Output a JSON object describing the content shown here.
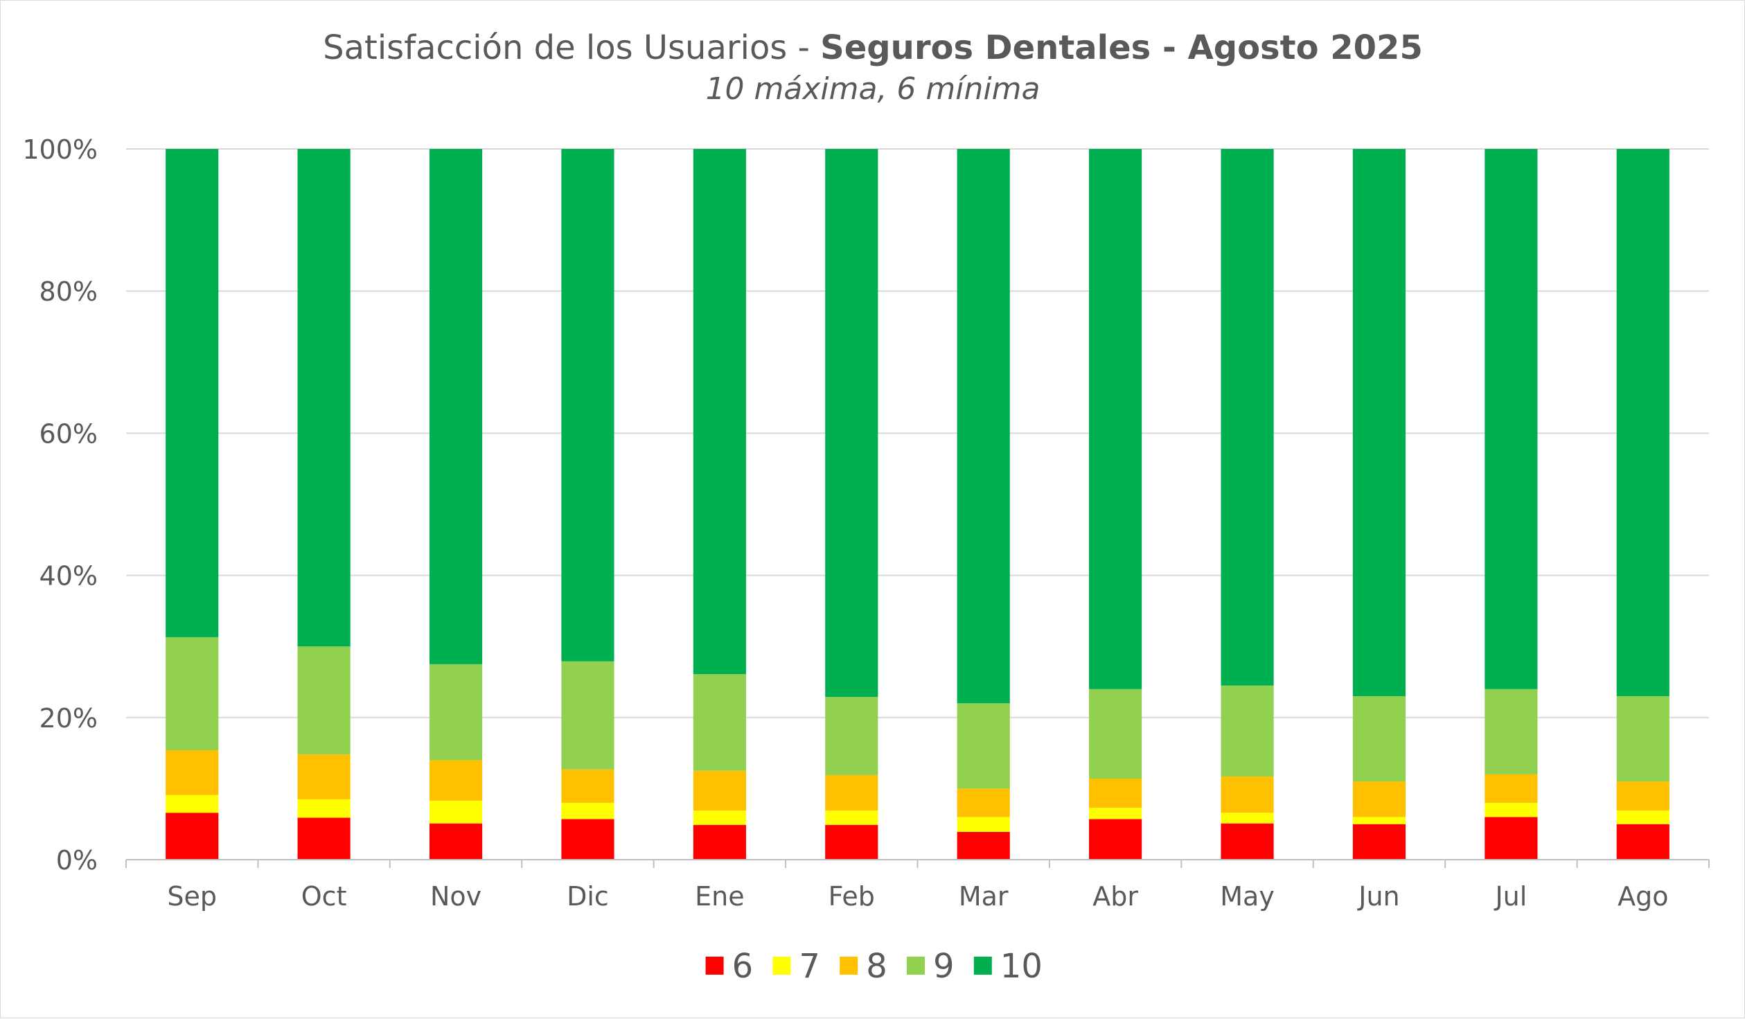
{
  "chart_data": {
    "type": "bar",
    "stacked": true,
    "percent": true,
    "title_regular": "Satisfacción de los Usuarios - ",
    "title_bold": "Seguros Dentales - Agosto 2025",
    "subtitle": "10 máxima, 6 mínima",
    "categories": [
      "Sep",
      "Oct",
      "Nov",
      "Dic",
      "Ene",
      "Feb",
      "Mar",
      "Abr",
      "May",
      "Jun",
      "Jul",
      "Ago"
    ],
    "y_ticks": [
      "0%",
      "20%",
      "40%",
      "60%",
      "80%",
      "100%"
    ],
    "ylim": [
      0,
      100
    ],
    "grid": true,
    "legend_position": "bottom",
    "series": [
      {
        "name": "6",
        "color": "#ff0000",
        "values": [
          6.6,
          5.9,
          5.1,
          5.7,
          4.9,
          4.9,
          3.9,
          5.7,
          5.1,
          5.0,
          6.0,
          5.0
        ]
      },
      {
        "name": "7",
        "color": "#ffff00",
        "values": [
          2.5,
          2.6,
          3.2,
          2.3,
          2.0,
          2.0,
          2.1,
          1.6,
          1.5,
          1.0,
          2.0,
          1.9
        ]
      },
      {
        "name": "8",
        "color": "#ffc000",
        "values": [
          6.3,
          6.3,
          5.7,
          4.7,
          5.6,
          5.0,
          4.0,
          4.1,
          5.1,
          5.0,
          4.0,
          4.1
        ]
      },
      {
        "name": "9",
        "color": "#92d050",
        "values": [
          15.9,
          15.2,
          13.5,
          15.2,
          13.6,
          11.0,
          12.0,
          12.6,
          12.8,
          12.0,
          12.0,
          12.0
        ]
      },
      {
        "name": "10",
        "color": "#00b050",
        "values": [
          68.7,
          70.0,
          72.5,
          72.1,
          73.9,
          77.1,
          78.0,
          76.0,
          75.5,
          77.0,
          76.0,
          77.0
        ]
      }
    ]
  }
}
